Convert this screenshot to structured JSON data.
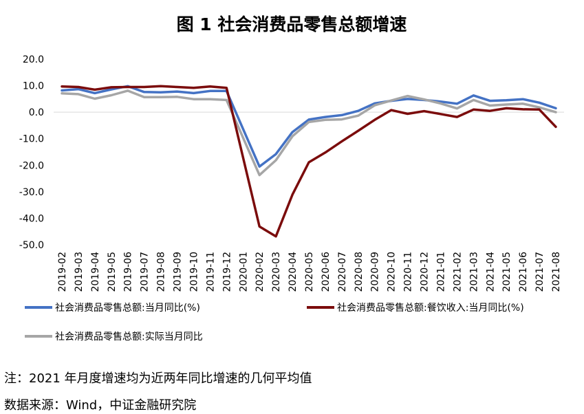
{
  "chart_data": {
    "type": "line",
    "title": "图 1 社会消费品零售总额增速",
    "categories": [
      "2019-02",
      "2019-03",
      "2019-04",
      "2019-05",
      "2019-06",
      "2019-07",
      "2019-08",
      "2019-09",
      "2019-10",
      "2019-11",
      "2019-12",
      "2020-01",
      "2020-02",
      "2020-03",
      "2020-04",
      "2020-05",
      "2020-06",
      "2020-07",
      "2020-08",
      "2020-09",
      "2020-10",
      "2020-11",
      "2020-12",
      "2021-01",
      "2021-02",
      "2021-03",
      "2021-04",
      "2021-05",
      "2021-06",
      "2021-07",
      "2021-08"
    ],
    "yticks": [
      "20.0",
      "10.0",
      "0.0",
      "-10.0",
      "-20.0",
      "-30.0",
      "-40.0",
      "-50.0"
    ],
    "ylim": [
      -50,
      20
    ],
    "grid": "horizontal at 0 only",
    "legend_position": "bottom",
    "series": [
      {
        "name": "社会消费品零售总额:当月同比(%)",
        "color": "#4472c4",
        "values": [
          8.2,
          8.7,
          7.2,
          8.6,
          9.8,
          7.6,
          7.5,
          7.8,
          7.2,
          8.0,
          8.0,
          null,
          -20.5,
          -15.8,
          -7.5,
          -2.8,
          -1.8,
          -1.1,
          0.5,
          3.3,
          4.3,
          5.0,
          4.6,
          4.0,
          3.2,
          6.3,
          4.3,
          4.5,
          4.9,
          3.6,
          1.5
        ]
      },
      {
        "name": "社会消费品零售总额:餐饮收入:当月同比(%)",
        "color": "#7b0c0c",
        "values": [
          9.7,
          9.5,
          8.5,
          9.4,
          9.5,
          9.5,
          9.8,
          9.5,
          9.2,
          9.7,
          9.2,
          null,
          -43.1,
          -46.8,
          -31.1,
          -18.9,
          -15.2,
          -11.0,
          -7.0,
          -2.9,
          0.8,
          -0.6,
          0.4,
          -0.7,
          -1.8,
          1.0,
          0.5,
          1.5,
          1.1,
          1.0,
          -5.5
        ]
      },
      {
        "name": "社会消费品零售总额:实际当月同比",
        "color": "#a6a6a6",
        "values": [
          7.1,
          6.8,
          5.1,
          6.4,
          8.1,
          5.7,
          5.7,
          5.8,
          4.9,
          4.9,
          4.6,
          null,
          -23.7,
          -18.1,
          -9.1,
          -3.7,
          -2.9,
          -2.7,
          -1.3,
          2.6,
          4.4,
          6.1,
          4.8,
          3.3,
          1.4,
          4.6,
          2.5,
          2.9,
          3.2,
          1.8,
          0.0
        ]
      }
    ]
  },
  "notes": {
    "note": "注：2021 年月度增速均为近两年同比增速的几何平均值",
    "source": "数据来源：Wind，中证金融研究院"
  }
}
